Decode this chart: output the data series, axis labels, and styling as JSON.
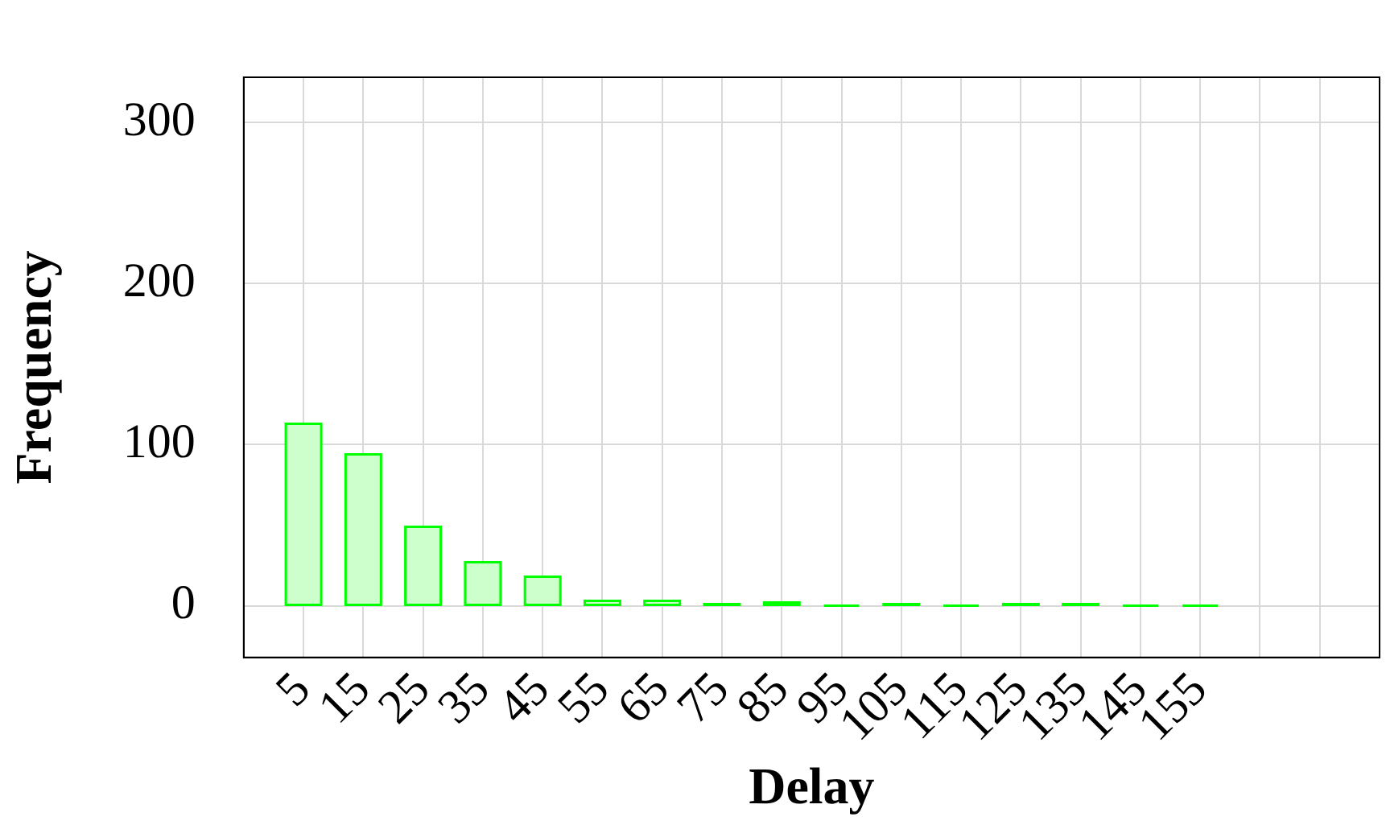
{
  "chart_data": {
    "type": "bar",
    "xlabel": "Delay",
    "ylabel": "Frequency",
    "x": [
      5,
      15,
      25,
      35,
      45,
      55,
      65,
      75,
      85,
      95,
      105,
      115,
      125,
      135,
      145,
      155
    ],
    "values": [
      113,
      94,
      49,
      27,
      18,
      3,
      3,
      1,
      2,
      0,
      1,
      0,
      1,
      1,
      0,
      0
    ],
    "color": "#ccffcc",
    "xlim": [
      -5,
      185
    ],
    "xticks": [
      5,
      15,
      25,
      35,
      45,
      55,
      65,
      75,
      85,
      95,
      105,
      115,
      125,
      135,
      145,
      155,
      {
        "value": 165,
        "label": null
      },
      {
        "value": 175,
        "label": null
      }
    ],
    "ylim": [
      -32,
      328
    ],
    "yticks": [
      0,
      100,
      200,
      300
    ],
    "grid": true,
    "legend": false
  }
}
